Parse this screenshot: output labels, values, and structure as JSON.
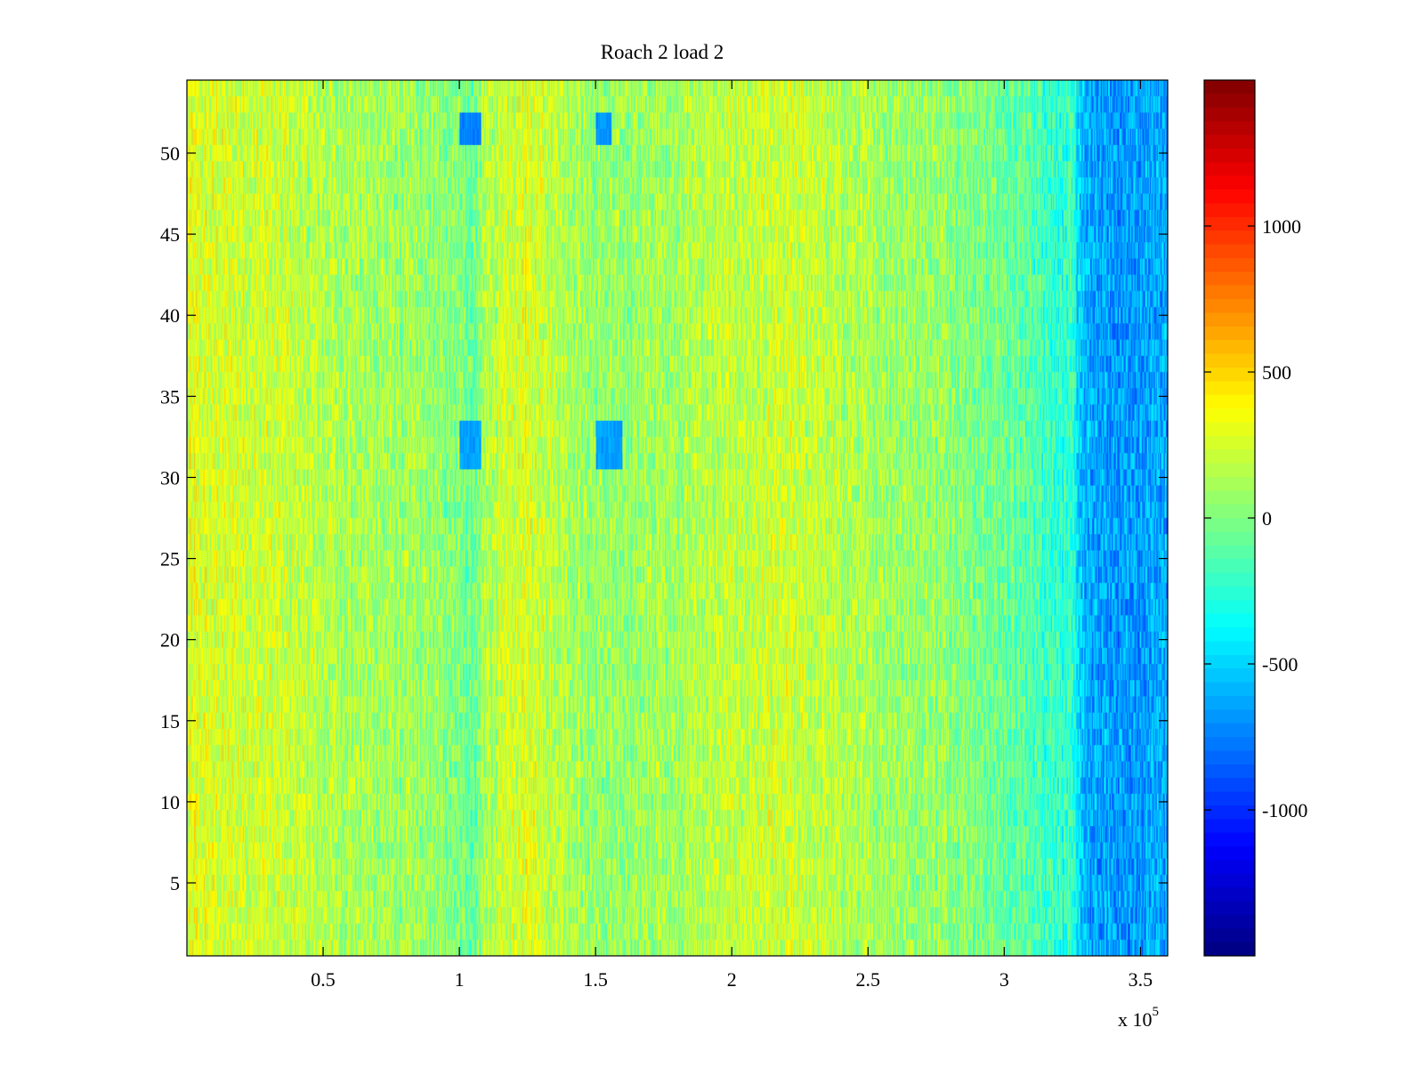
{
  "chart_data": {
    "type": "heatmap",
    "title": "Roach 2 load 2",
    "xlabel": "",
    "ylabel": "",
    "x_multiplier_label": "x 10",
    "x_multiplier_exponent": "5",
    "xlim": [
      0,
      3.6
    ],
    "ylim": [
      0.5,
      54.5
    ],
    "x_ticks": [
      0.5,
      1,
      1.5,
      2,
      2.5,
      3,
      3.5
    ],
    "x_tick_labels": [
      "0.5",
      "1",
      "1.5",
      "2",
      "2.5",
      "3",
      "3.5"
    ],
    "y_ticks": [
      5,
      10,
      15,
      20,
      25,
      30,
      35,
      40,
      45,
      50
    ],
    "y_tick_labels": [
      "5",
      "10",
      "15",
      "20",
      "25",
      "30",
      "35",
      "40",
      "45",
      "50"
    ],
    "rows": 54,
    "colorbar": {
      "range": [
        -1500,
        1500
      ],
      "ticks": [
        -1000,
        -500,
        0,
        500,
        1000
      ],
      "tick_labels": [
        "-1000",
        "-500",
        "0",
        "500",
        "1000"
      ],
      "colormap": "jet"
    },
    "column_profile_x": [
      0.0,
      0.3,
      0.5,
      0.9,
      1.0,
      1.05,
      1.1,
      1.25,
      1.4,
      1.5,
      1.7,
      2.0,
      2.2,
      2.5,
      2.8,
      3.0,
      3.15,
      3.25,
      3.3,
      3.45,
      3.6
    ],
    "column_profile_mean": [
      280,
      230,
      150,
      60,
      30,
      -100,
      150,
      280,
      150,
      40,
      90,
      190,
      220,
      110,
      60,
      -60,
      -170,
      -260,
      -640,
      -680,
      -620
    ],
    "cell_noise_amplitude": 230,
    "annotations": [
      {
        "x": [
          1.0,
          1.08
        ],
        "y": [
          31,
          33
        ],
        "value": -650
      },
      {
        "x": [
          1.5,
          1.6
        ],
        "y": [
          31,
          33
        ],
        "value": -650
      },
      {
        "x": [
          1.0,
          1.08
        ],
        "y": [
          51,
          52.5
        ],
        "value": -750
      },
      {
        "x": [
          1.5,
          1.56
        ],
        "y": [
          51,
          52.5
        ],
        "value": -700
      }
    ]
  }
}
